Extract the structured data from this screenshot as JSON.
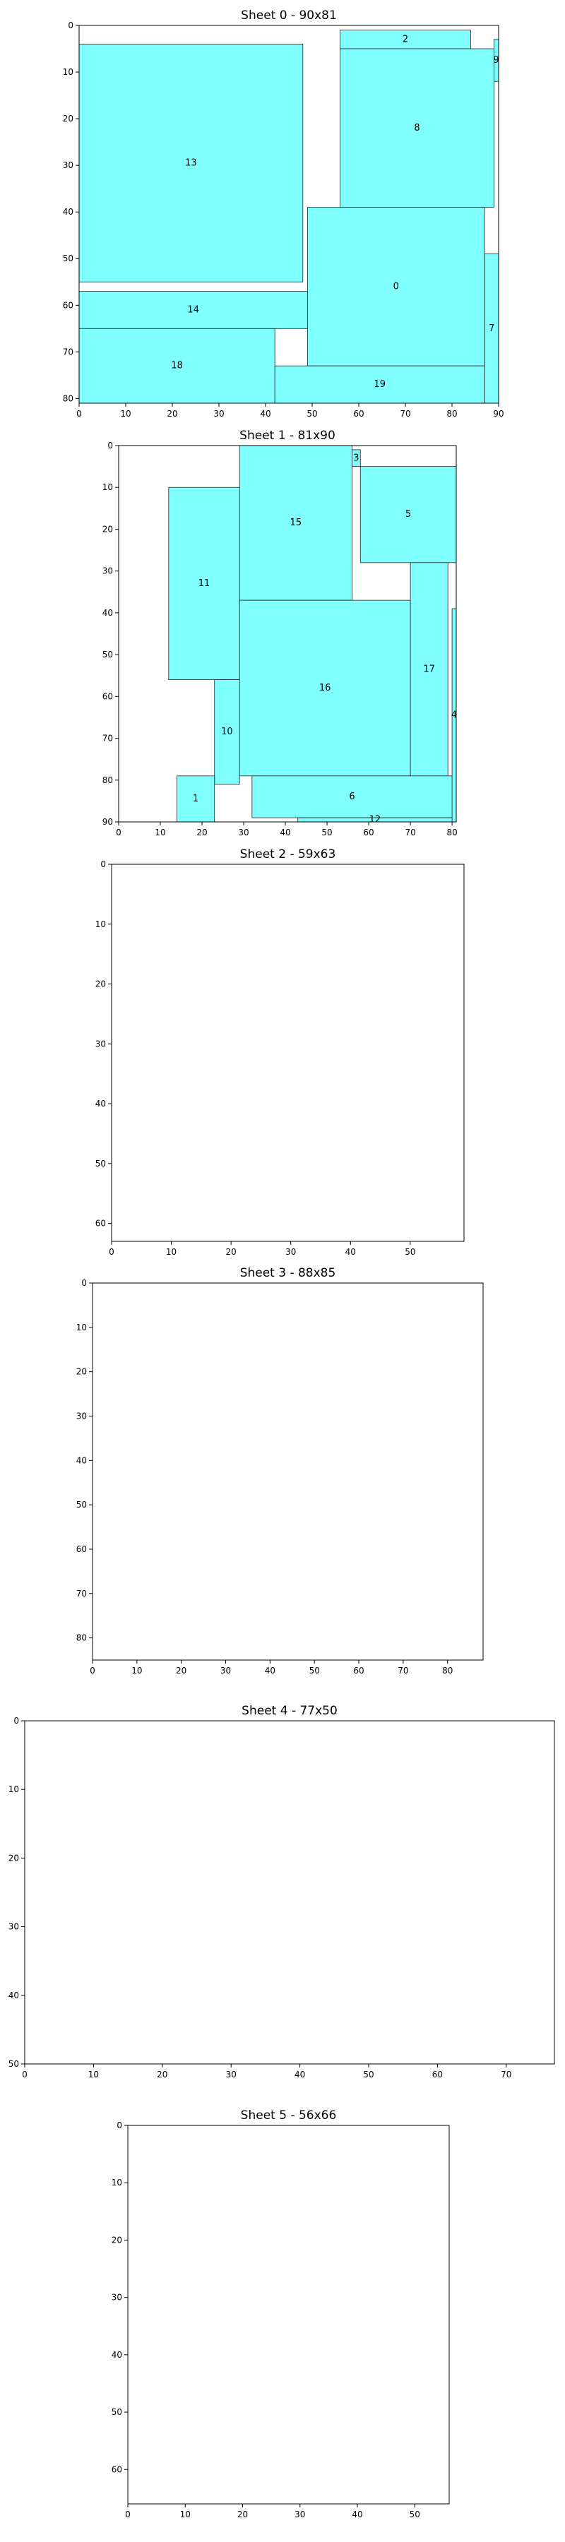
{
  "chart_data": [
    {
      "type": "packing",
      "title": "Sheet 0 - 90x81",
      "xlim": [
        0,
        90
      ],
      "ylim": [
        0,
        81
      ],
      "y_inverted": true,
      "xticks": [
        0,
        10,
        20,
        30,
        40,
        50,
        60,
        70,
        80,
        90
      ],
      "yticks": [
        0,
        10,
        20,
        30,
        40,
        50,
        60,
        70,
        80
      ],
      "fill_color": "#80ffff",
      "pieces": [
        {
          "id": "13",
          "x": 0,
          "y": 4,
          "w": 48,
          "h": 51
        },
        {
          "id": "2",
          "x": 56,
          "y": 1,
          "w": 28,
          "h": 4
        },
        {
          "id": "8",
          "x": 56,
          "y": 5,
          "w": 33,
          "h": 34
        },
        {
          "id": "9",
          "x": 89,
          "y": 3,
          "w": 1,
          "h": 9
        },
        {
          "id": "14",
          "x": 0,
          "y": 57,
          "w": 49,
          "h": 8
        },
        {
          "id": "0",
          "x": 49,
          "y": 39,
          "w": 38,
          "h": 34
        },
        {
          "id": "7",
          "x": 87,
          "y": 49,
          "w": 3,
          "h": 32
        },
        {
          "id": "18",
          "x": 0,
          "y": 65,
          "w": 42,
          "h": 16
        },
        {
          "id": "19",
          "x": 42,
          "y": 73,
          "w": 45,
          "h": 8
        }
      ]
    },
    {
      "type": "packing",
      "title": "Sheet 1 - 81x90",
      "xlim": [
        0,
        81
      ],
      "ylim": [
        0,
        90
      ],
      "y_inverted": true,
      "xticks": [
        0,
        10,
        20,
        30,
        40,
        50,
        60,
        70,
        80
      ],
      "yticks": [
        0,
        10,
        20,
        30,
        40,
        50,
        60,
        70,
        80,
        90
      ],
      "fill_color": "#80ffff",
      "pieces": [
        {
          "id": "15",
          "x": 29,
          "y": 0,
          "w": 27,
          "h": 37
        },
        {
          "id": "3",
          "x": 56,
          "y": 1,
          "w": 2,
          "h": 4
        },
        {
          "id": "5",
          "x": 58,
          "y": 5,
          "w": 23,
          "h": 23
        },
        {
          "id": "11",
          "x": 12,
          "y": 10,
          "w": 17,
          "h": 46
        },
        {
          "id": "16",
          "x": 29,
          "y": 37,
          "w": 41,
          "h": 42
        },
        {
          "id": "17",
          "x": 70,
          "y": 28,
          "w": 9,
          "h": 51
        },
        {
          "id": "4",
          "x": 80,
          "y": 39,
          "w": 1,
          "h": 51
        },
        {
          "id": "10",
          "x": 23,
          "y": 56,
          "w": 6,
          "h": 25
        },
        {
          "id": "1",
          "x": 14,
          "y": 79,
          "w": 9,
          "h": 11
        },
        {
          "id": "6",
          "x": 32,
          "y": 79,
          "w": 48,
          "h": 10
        },
        {
          "id": "12",
          "x": 43,
          "y": 89,
          "w": 37,
          "h": 1
        }
      ]
    },
    {
      "type": "packing",
      "title": "Sheet 2 - 59x63",
      "xlim": [
        0,
        59
      ],
      "ylim": [
        0,
        63
      ],
      "y_inverted": true,
      "xticks": [
        0,
        10,
        20,
        30,
        40,
        50
      ],
      "yticks": [
        0,
        10,
        20,
        30,
        40,
        50,
        60
      ],
      "fill_color": "#80ffff",
      "pieces": []
    },
    {
      "type": "packing",
      "title": "Sheet 3 - 88x85",
      "xlim": [
        0,
        88
      ],
      "ylim": [
        0,
        85
      ],
      "y_inverted": true,
      "xticks": [
        0,
        10,
        20,
        30,
        40,
        50,
        60,
        70,
        80
      ],
      "yticks": [
        0,
        10,
        20,
        30,
        40,
        50,
        60,
        70,
        80
      ],
      "fill_color": "#80ffff",
      "pieces": []
    },
    {
      "type": "packing",
      "title": "Sheet 4 - 77x50",
      "xlim": [
        0,
        77
      ],
      "ylim": [
        0,
        50
      ],
      "y_inverted": true,
      "xticks": [
        0,
        10,
        20,
        30,
        40,
        50,
        60,
        70
      ],
      "yticks": [
        0,
        10,
        20,
        30,
        40,
        50
      ],
      "fill_color": "#80ffff",
      "pieces": []
    },
    {
      "type": "packing",
      "title": "Sheet 5 - 56x66",
      "xlim": [
        0,
        56
      ],
      "ylim": [
        0,
        66
      ],
      "y_inverted": true,
      "xticks": [
        0,
        10,
        20,
        30,
        40,
        50
      ],
      "yticks": [
        0,
        10,
        20,
        30,
        40,
        50,
        60
      ],
      "fill_color": "#80ffff",
      "pieces": []
    }
  ]
}
